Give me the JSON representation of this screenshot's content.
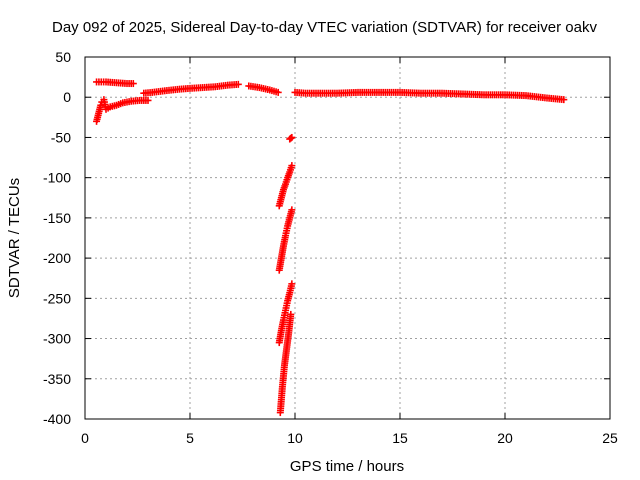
{
  "chart_data": {
    "type": "scatter",
    "title": "Day 092 of 2025, Sidereal Day-to-day VTEC variation (SDTVAR) for receiver oakv",
    "xlabel": "GPS time / hours",
    "ylabel": "SDTVAR / TECUs",
    "xlim": [
      0,
      25
    ],
    "ylim": [
      -400,
      50
    ],
    "xticks": [
      0,
      5,
      10,
      15,
      20,
      25
    ],
    "yticks": [
      50,
      0,
      -50,
      -100,
      -150,
      -200,
      -250,
      -300,
      -350,
      -400
    ],
    "grid": true,
    "marker": "+",
    "color": "#ff0000",
    "series": [
      {
        "segments": [
          {
            "x": [
              0.55,
              1.0,
              1.5,
              2.0,
              2.3
            ],
            "y": [
              19,
              19,
              18,
              17,
              17
            ]
          },
          {
            "x": [
              0.55,
              0.6,
              0.65,
              0.7,
              0.75,
              0.8,
              0.9,
              1.0,
              1.2,
              1.5,
              1.8,
              2.2,
              2.6,
              3.0
            ],
            "y": [
              -30,
              -25,
              -20,
              -15,
              -10,
              -6,
              -3,
              -15,
              -12,
              -10,
              -7,
              -5,
              -4,
              -4
            ]
          },
          {
            "x": [
              2.8,
              3.2,
              3.8,
              4.5,
              5.0,
              5.6,
              6.2,
              6.8,
              7.3
            ],
            "y": [
              5,
              6,
              8,
              10,
              11,
              12,
              13,
              15,
              16
            ]
          },
          {
            "x": [
              7.8,
              8.3,
              8.8,
              9.2
            ],
            "y": [
              14,
              12,
              9,
              6
            ]
          },
          {
            "x": [
              10.0,
              10.5,
              11.0,
              12.0,
              13.0,
              14.0,
              15.0,
              16.0,
              17.0,
              18.0,
              19.0,
              20.0,
              21.0,
              22.0,
              22.8
            ],
            "y": [
              6,
              5,
              5,
              5,
              6,
              6,
              6,
              5,
              5,
              4,
              3,
              3,
              2,
              -1,
              -3
            ]
          },
          {
            "x": [
              9.75,
              9.8,
              9.85
            ],
            "y": [
              -52,
              -51,
              -50
            ]
          },
          {
            "x": [
              9.25,
              9.35,
              9.45,
              9.55,
              9.65,
              9.75,
              9.85
            ],
            "y": [
              -135,
              -125,
              -115,
              -108,
              -100,
              -93,
              -85
            ]
          },
          {
            "x": [
              9.25,
              9.35,
              9.45,
              9.55,
              9.65,
              9.75,
              9.85
            ],
            "y": [
              -215,
              -200,
              -185,
              -172,
              -160,
              -150,
              -140
            ]
          },
          {
            "x": [
              9.25,
              9.35,
              9.45,
              9.55,
              9.65,
              9.75,
              9.85
            ],
            "y": [
              -305,
              -290,
              -277,
              -265,
              -253,
              -243,
              -232
            ]
          },
          {
            "x": [
              9.3,
              9.4,
              9.5,
              9.6,
              9.7,
              9.8
            ],
            "y": [
              -392,
              -360,
              -333,
              -313,
              -293,
              -270
            ]
          }
        ]
      }
    ]
  }
}
